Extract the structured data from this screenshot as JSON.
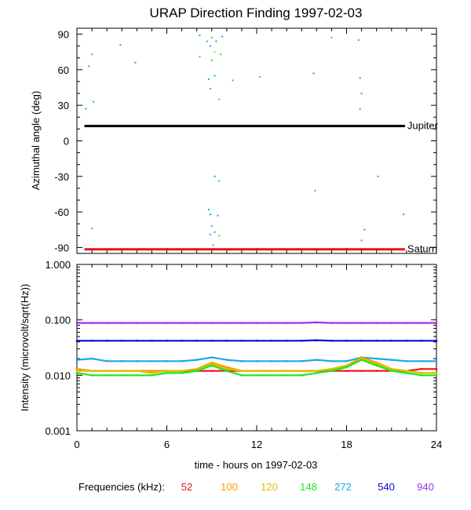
{
  "title": "URAP Direction Finding  1997-02-03",
  "xlabel": "time - hours on 1997-02-03",
  "legend": {
    "label": "Frequencies (kHz):",
    "items": [
      {
        "name": "52",
        "color": "#e8141a"
      },
      {
        "name": "100",
        "color": "#ff9a00"
      },
      {
        "name": "120",
        "color": "#d8c000"
      },
      {
        "name": "148",
        "color": "#1ee61e"
      },
      {
        "name": "272",
        "color": "#1aa8f0"
      },
      {
        "name": "540",
        "color": "#0a0ad2"
      },
      {
        "name": "940",
        "color": "#a032f0"
      }
    ]
  },
  "chart_data": [
    {
      "type": "scatter",
      "title": "URAP Direction Finding  1997-02-03",
      "ylabel": "Azimuthal angle (deg)",
      "xlim": [
        0,
        24
      ],
      "ylim": [
        -95,
        95
      ],
      "xticks": [
        "0",
        "6",
        "12",
        "18",
        "24"
      ],
      "yticks": [
        "90",
        "60",
        "30",
        "0",
        "-30",
        "-60",
        "-90"
      ],
      "reference_lines": [
        {
          "name": "Jupiter",
          "y": 12.5,
          "color": "#000000"
        },
        {
          "name": "Saturn",
          "y": -91.5,
          "color": "#e8141a"
        }
      ],
      "points": [
        {
          "x": 0.8,
          "y": 63,
          "color": "#1aa8f0"
        },
        {
          "x": 1.0,
          "y": 73,
          "color": "#1aa8f0"
        },
        {
          "x": 1.1,
          "y": 33,
          "color": "#1aa8f0"
        },
        {
          "x": 0.6,
          "y": 27,
          "color": "#1aa8f0"
        },
        {
          "x": 2.9,
          "y": 81,
          "color": "#1aa8f0"
        },
        {
          "x": 3.9,
          "y": 66,
          "color": "#1aa8f0"
        },
        {
          "x": 1.0,
          "y": -74,
          "color": "#1aa8f0"
        },
        {
          "x": 8.2,
          "y": 89,
          "color": "#1aa8f0"
        },
        {
          "x": 8.7,
          "y": 84,
          "color": "#1ee61e"
        },
        {
          "x": 8.9,
          "y": 80,
          "color": "#1aa8f0"
        },
        {
          "x": 8.2,
          "y": 71,
          "color": "#1ee61e"
        },
        {
          "x": 9.0,
          "y": 87,
          "color": "#1ee61e"
        },
        {
          "x": 9.2,
          "y": 75,
          "color": "#d8c000"
        },
        {
          "x": 9.0,
          "y": 68,
          "color": "#1ee61e"
        },
        {
          "x": 9.3,
          "y": 84,
          "color": "#1aa8f0"
        },
        {
          "x": 9.6,
          "y": 73,
          "color": "#1ee61e"
        },
        {
          "x": 9.7,
          "y": 88,
          "color": "#1aa8f0"
        },
        {
          "x": 8.8,
          "y": 52,
          "color": "#1aa8f0"
        },
        {
          "x": 9.2,
          "y": 55,
          "color": "#1aa8f0"
        },
        {
          "x": 8.9,
          "y": 44,
          "color": "#1aa8f0"
        },
        {
          "x": 10.4,
          "y": 51,
          "color": "#1ee61e"
        },
        {
          "x": 9.5,
          "y": 35,
          "color": "#1ee61e"
        },
        {
          "x": 12.2,
          "y": 54,
          "color": "#1ee61e"
        },
        {
          "x": 9.2,
          "y": -30,
          "color": "#1aa8f0"
        },
        {
          "x": 9.5,
          "y": -34,
          "color": "#1ee61e"
        },
        {
          "x": 8.8,
          "y": -58,
          "color": "#1aa8f0"
        },
        {
          "x": 8.9,
          "y": -62,
          "color": "#1aa8f0"
        },
        {
          "x": 9.4,
          "y": -63,
          "color": "#1aa8f0"
        },
        {
          "x": 9.0,
          "y": -72,
          "color": "#1aa8f0"
        },
        {
          "x": 8.9,
          "y": -79,
          "color": "#1aa8f0"
        },
        {
          "x": 9.2,
          "y": -77,
          "color": "#1aa8f0"
        },
        {
          "x": 9.5,
          "y": -80,
          "color": "#1ee61e"
        },
        {
          "x": 9.1,
          "y": -88,
          "color": "#1aa8f0"
        },
        {
          "x": 15.8,
          "y": 57,
          "color": "#1aa8f0"
        },
        {
          "x": 17.0,
          "y": 87,
          "color": "#1ee61e"
        },
        {
          "x": 18.8,
          "y": 85,
          "color": "#1aa8f0"
        },
        {
          "x": 18.9,
          "y": 53,
          "color": "#1aa8f0"
        },
        {
          "x": 19.0,
          "y": 40,
          "color": "#1aa8f0"
        },
        {
          "x": 18.9,
          "y": 27,
          "color": "#1aa8f0"
        },
        {
          "x": 15.9,
          "y": -42,
          "color": "#1aa8f0"
        },
        {
          "x": 20.1,
          "y": -30,
          "color": "#1aa8f0"
        },
        {
          "x": 21.8,
          "y": -62,
          "color": "#1aa8f0"
        },
        {
          "x": 19.2,
          "y": -75,
          "color": "#1aa8f0"
        },
        {
          "x": 19.0,
          "y": -84,
          "color": "#1aa8f0"
        }
      ]
    },
    {
      "type": "line",
      "ylabel": "Intensity (microvolt/sqrt(Hz))",
      "xlabel": "time - hours on 1997-02-03",
      "xlim": [
        0,
        24
      ],
      "ylim": [
        0.001,
        1.0
      ],
      "yscale": "log",
      "xticks": [
        "0",
        "6",
        "12",
        "18",
        "24"
      ],
      "yticks": [
        "1.000",
        "0.100",
        "0.010",
        "0.001"
      ],
      "x": [
        0,
        1,
        2,
        3,
        4,
        5,
        6,
        7,
        8,
        9,
        10,
        11,
        12,
        13,
        14,
        15,
        16,
        17,
        18,
        19,
        20,
        21,
        22,
        23,
        24
      ],
      "series": [
        {
          "name": "940",
          "color": "#a032f0",
          "values": [
            0.088,
            0.088,
            0.088,
            0.088,
            0.088,
            0.088,
            0.088,
            0.088,
            0.088,
            0.088,
            0.088,
            0.088,
            0.088,
            0.088,
            0.088,
            0.088,
            0.09,
            0.088,
            0.088,
            0.088,
            0.088,
            0.088,
            0.088,
            0.088,
            0.088
          ]
        },
        {
          "name": "540",
          "color": "#0a0ad2",
          "values": [
            0.042,
            0.042,
            0.042,
            0.042,
            0.042,
            0.042,
            0.042,
            0.042,
            0.042,
            0.042,
            0.042,
            0.042,
            0.042,
            0.042,
            0.042,
            0.042,
            0.043,
            0.042,
            0.042,
            0.042,
            0.042,
            0.042,
            0.042,
            0.042,
            0.042
          ]
        },
        {
          "name": "272",
          "color": "#1aa8f0",
          "values": [
            0.019,
            0.02,
            0.018,
            0.018,
            0.018,
            0.018,
            0.018,
            0.018,
            0.019,
            0.021,
            0.019,
            0.018,
            0.018,
            0.018,
            0.018,
            0.018,
            0.019,
            0.018,
            0.018,
            0.021,
            0.02,
            0.019,
            0.018,
            0.018,
            0.018
          ]
        },
        {
          "name": "52",
          "color": "#e8141a",
          "values": [
            0.013,
            0.012,
            0.012,
            0.012,
            0.012,
            0.012,
            0.012,
            0.012,
            0.012,
            0.012,
            0.012,
            0.012,
            0.012,
            0.012,
            0.012,
            0.012,
            0.012,
            0.012,
            0.012,
            0.012,
            0.012,
            0.012,
            0.012,
            0.013,
            0.013
          ]
        },
        {
          "name": "100",
          "color": "#ff9a00",
          "values": [
            0.013,
            0.012,
            0.012,
            0.012,
            0.012,
            0.012,
            0.012,
            0.012,
            0.013,
            0.017,
            0.014,
            0.012,
            0.012,
            0.012,
            0.012,
            0.012,
            0.012,
            0.013,
            0.015,
            0.021,
            0.017,
            0.013,
            0.012,
            0.011,
            0.011
          ]
        },
        {
          "name": "120",
          "color": "#d8c000",
          "values": [
            0.012,
            0.012,
            0.012,
            0.012,
            0.012,
            0.011,
            0.012,
            0.012,
            0.013,
            0.016,
            0.013,
            0.012,
            0.012,
            0.012,
            0.012,
            0.012,
            0.012,
            0.013,
            0.015,
            0.02,
            0.016,
            0.013,
            0.012,
            0.011,
            0.011
          ]
        },
        {
          "name": "148",
          "color": "#1ee61e",
          "values": [
            0.011,
            0.01,
            0.01,
            0.01,
            0.01,
            0.01,
            0.011,
            0.011,
            0.012,
            0.015,
            0.012,
            0.01,
            0.01,
            0.01,
            0.01,
            0.01,
            0.011,
            0.012,
            0.014,
            0.019,
            0.015,
            0.012,
            0.011,
            0.01,
            0.01
          ]
        }
      ]
    }
  ]
}
